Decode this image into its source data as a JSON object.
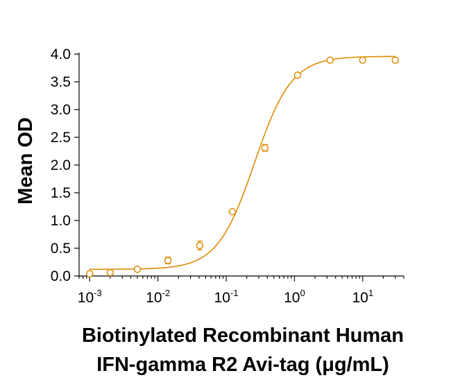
{
  "chart_data": {
    "type": "scatter",
    "title": "",
    "xlabel_line1": "Biotinylated Recombinant Human",
    "xlabel_line2": "IFN-gamma R2 Avi-tag (μg/mL)",
    "ylabel": "Mean OD",
    "x_scale": "log",
    "xlim": [
      0.0007,
      40
    ],
    "ylim": [
      0,
      4.0
    ],
    "x_ticks": [
      {
        "base": "10",
        "exp": "-3",
        "value": 0.001
      },
      {
        "base": "10",
        "exp": "-2",
        "value": 0.01
      },
      {
        "base": "10",
        "exp": "-1",
        "value": 0.1
      },
      {
        "base": "10",
        "exp": "0",
        "value": 1
      },
      {
        "base": "10",
        "exp": "1",
        "value": 10
      }
    ],
    "y_ticks": [
      "0.0",
      "0.5",
      "1.0",
      "1.5",
      "2.0",
      "2.5",
      "3.0",
      "3.5",
      "4.0"
    ],
    "grid": false,
    "color": "#E08A00",
    "series": [
      {
        "x": [
          0.001,
          0.002,
          0.005,
          0.014,
          0.041,
          0.123,
          0.37,
          1.11,
          3.33,
          10,
          30
        ],
        "y": [
          0.04,
          0.06,
          0.12,
          0.28,
          0.55,
          1.16,
          2.31,
          3.62,
          3.89,
          3.89,
          3.89
        ],
        "err": [
          0.02,
          0.02,
          0.03,
          0.06,
          0.08,
          0.03,
          0.06,
          0.04,
          0.03,
          0.03,
          0.03
        ]
      }
    ],
    "fit": {
      "model": "4PL",
      "bottom": 0.12,
      "top": 3.96,
      "ec50": 0.26,
      "hill": 1.6
    }
  }
}
